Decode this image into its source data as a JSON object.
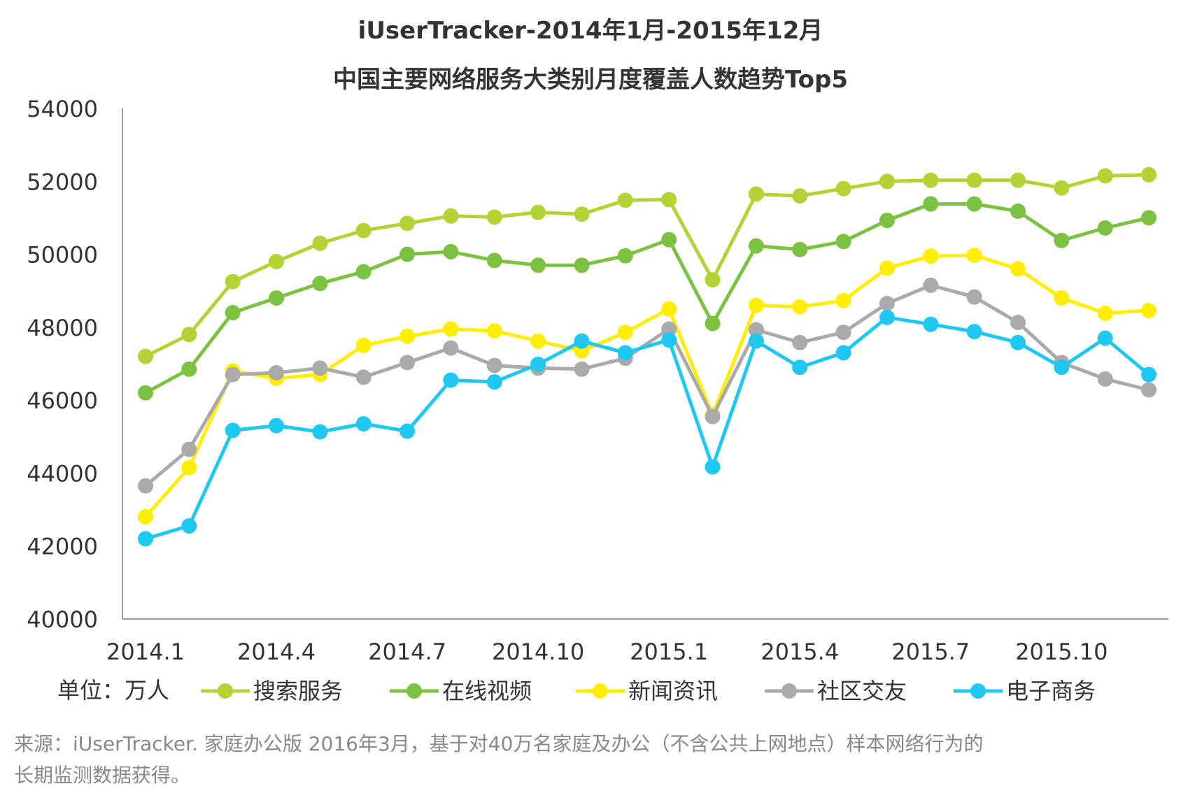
{
  "chart_data": {
    "type": "line",
    "title": "iUserTracker-2014年1月-2015年12月",
    "subtitle": "中国主要网络服务大类别月度覆盖人数趋势Top5",
    "unit_label": "单位：万人",
    "ylim": [
      40000,
      54000
    ],
    "y_ticks": [
      40000,
      42000,
      44000,
      46000,
      48000,
      50000,
      52000,
      54000
    ],
    "x": [
      "2014.1",
      "2014.2",
      "2014.3",
      "2014.4",
      "2014.5",
      "2014.6",
      "2014.7",
      "2014.8",
      "2014.9",
      "2014.10",
      "2014.11",
      "2014.12",
      "2015.1",
      "2015.2",
      "2015.3",
      "2015.4",
      "2015.5",
      "2015.6",
      "2015.7",
      "2015.8",
      "2015.9",
      "2015.10",
      "2015.11",
      "2015.12"
    ],
    "x_tick_labels": [
      {
        "index": 0,
        "label": "2014.1"
      },
      {
        "index": 3,
        "label": "2014.4"
      },
      {
        "index": 6,
        "label": "2014.7"
      },
      {
        "index": 9,
        "label": "2014.10"
      },
      {
        "index": 12,
        "label": "2015.1"
      },
      {
        "index": 15,
        "label": "2015.4"
      },
      {
        "index": 18,
        "label": "2015.7"
      },
      {
        "index": 21,
        "label": "2015.10"
      }
    ],
    "grid": false,
    "legend_position": "bottom",
    "series": [
      {
        "name": "搜索服务",
        "color": "#b3d234",
        "values": [
          47200,
          47800,
          49250,
          49800,
          50300,
          50650,
          50850,
          51050,
          51020,
          51150,
          51100,
          51480,
          51500,
          49300,
          51650,
          51600,
          51800,
          52000,
          52030,
          52030,
          52030,
          51820,
          52150,
          52180
        ]
      },
      {
        "name": "在线视频",
        "color": "#7cc242",
        "values": [
          46200,
          46850,
          48400,
          48800,
          49200,
          49520,
          50000,
          50070,
          49830,
          49700,
          49700,
          49960,
          50400,
          48100,
          50230,
          50130,
          50350,
          50930,
          51380,
          51380,
          51180,
          50380,
          50720,
          51000
        ]
      },
      {
        "name": "新闻资讯",
        "color": "#ffee00",
        "values": [
          42800,
          44150,
          46800,
          46600,
          46700,
          47500,
          47750,
          47950,
          47900,
          47620,
          47350,
          47860,
          48500,
          45600,
          48600,
          48560,
          48730,
          49620,
          49950,
          49970,
          49600,
          48800,
          48380,
          48460
        ]
      },
      {
        "name": "社区交友",
        "color": "#aaaaaa",
        "values": [
          43650,
          44650,
          46700,
          46750,
          46880,
          46630,
          47030,
          47430,
          46950,
          46880,
          46850,
          47150,
          47950,
          45550,
          47930,
          47580,
          47860,
          48650,
          49150,
          48830,
          48130,
          47030,
          46580,
          46280
        ]
      },
      {
        "name": "电子商务",
        "color": "#1ec8f0",
        "values": [
          42200,
          42550,
          45170,
          45300,
          45130,
          45350,
          45150,
          46550,
          46500,
          46980,
          47620,
          47300,
          47650,
          44170,
          47620,
          46900,
          47300,
          48270,
          48080,
          47880,
          47580,
          46900,
          47700,
          46700
        ]
      }
    ],
    "source_note_line1": "来源：iUserTracker. 家庭办公版 2016年3月，基于对40万名家庭及办公（不含公共上网地点）样本网络行为的",
    "source_note_line2": "长期监测数据获得。"
  }
}
